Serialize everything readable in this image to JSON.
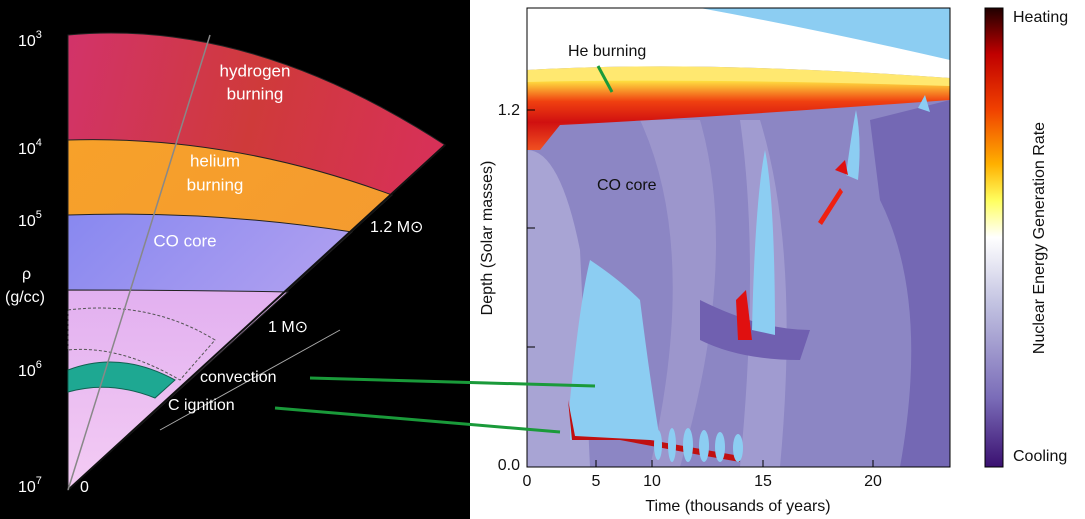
{
  "left_panel": {
    "density_axis": {
      "label_symbol": "ρ",
      "label_unit": "(g/cc)",
      "ticks": [
        {
          "base": "10",
          "exp": "3"
        },
        {
          "base": "10",
          "exp": "4"
        },
        {
          "base": "10",
          "exp": "5"
        },
        {
          "base": "10",
          "exp": "6"
        },
        {
          "base": "10",
          "exp": "7"
        }
      ]
    },
    "origin_label": "0",
    "layers": {
      "hydrogen": [
        "hydrogen",
        "burning"
      ],
      "helium": [
        "helium",
        "burning"
      ],
      "core": "CO core"
    },
    "mass_labels": [
      "1.2 M⊙",
      "1 M⊙"
    ],
    "callouts": [
      "convection",
      "C ignition"
    ]
  },
  "right_panel": {
    "y_axis_label": "Depth (Solar masses)",
    "x_axis_label": "Time (thousands of years)",
    "yticks": [
      "1.2",
      "0.0"
    ],
    "xticks": [
      "0",
      "5",
      "10",
      "15",
      "20"
    ],
    "annotations": [
      "He burning",
      "CO core"
    ],
    "colorbar": {
      "label": "Nuclear Energy Generation Rate",
      "top": "Heating",
      "bottom": "Cooling"
    }
  }
}
